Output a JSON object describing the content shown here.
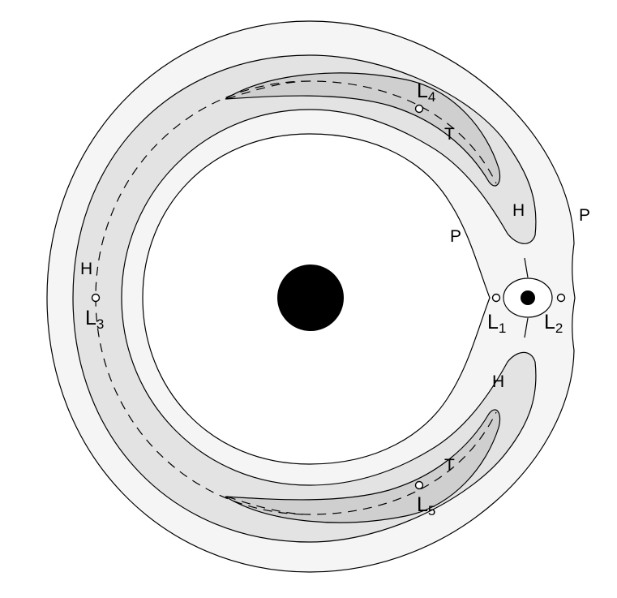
{
  "colors": {
    "background": "#ffffff",
    "outer_region_fill": "#f5f5f5",
    "horseshoe_fill": "#e3e3e3",
    "tadpole_fill": "#cfcfcf",
    "stroke": "#000000",
    "primary_mass": "#000000",
    "secondary_mass": "#000000"
  },
  "labels": {
    "p_outer": "P",
    "p_inner": "P",
    "h_upper": "H",
    "h_lower": "H",
    "h_left": "H",
    "t_upper": "T",
    "t_lower": "T"
  },
  "lagrange_points": {
    "l1": {
      "base": "L",
      "sub": "1"
    },
    "l2": {
      "base": "L",
      "sub": "2"
    },
    "l3": {
      "base": "L",
      "sub": "3"
    },
    "l4": {
      "base": "L",
      "sub": "4"
    },
    "l5": {
      "base": "L",
      "sub": "5"
    }
  }
}
